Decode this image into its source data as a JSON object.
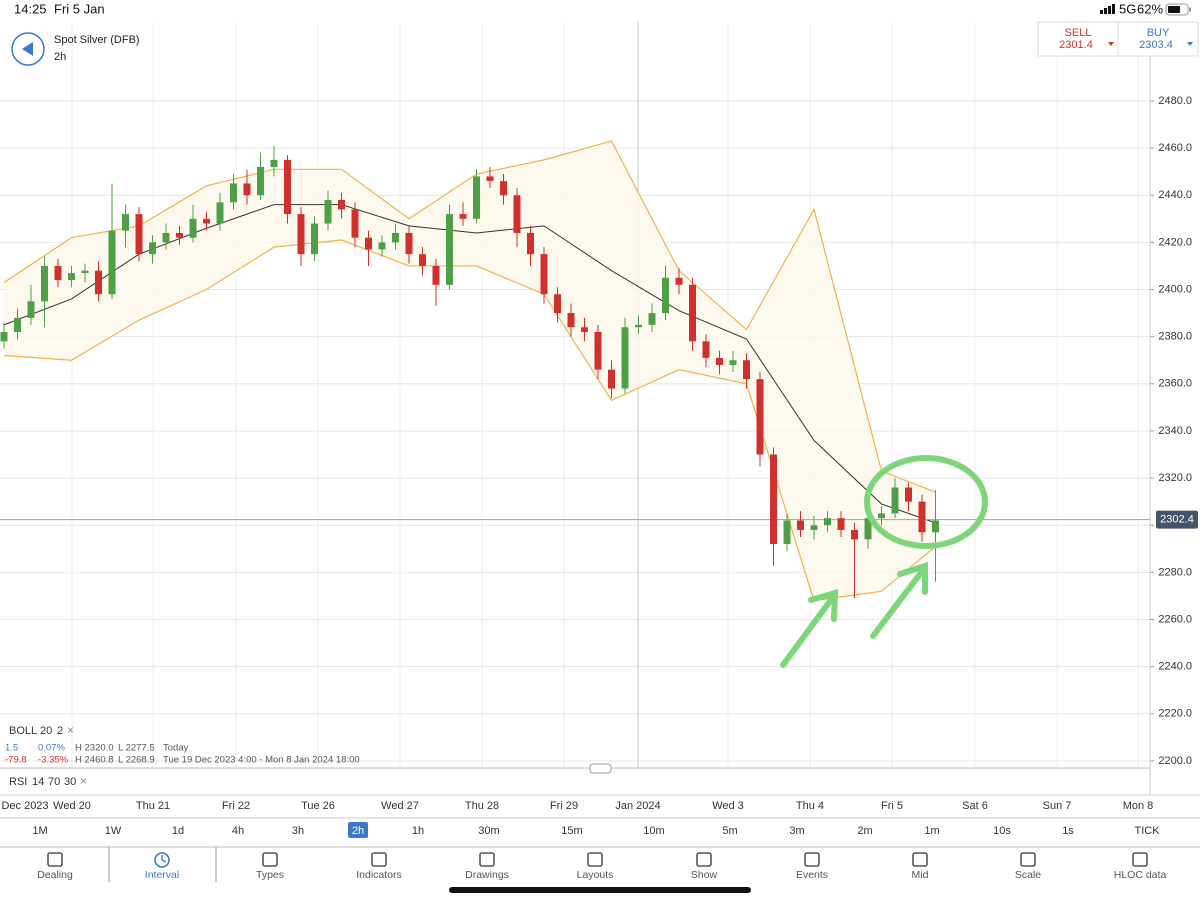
{
  "status_bar": {
    "time": "14:25",
    "date": "Fri 5 Jan",
    "network": "5G",
    "battery": "62%"
  },
  "header": {
    "instrument": "Spot Silver (DFB)",
    "interval": "2h",
    "sell_label": "SELL",
    "sell_price": "2301.4",
    "buy_label": "BUY",
    "buy_price": "2303.4"
  },
  "chart_data": {
    "type": "candlestick",
    "x_labels": [
      "Dec 2023",
      "Wed 20",
      "Thu 21",
      "Fri 22",
      "Tue 26",
      "Wed 27",
      "Thu 28",
      "Fri 29",
      "Jan 2024",
      "Wed 3",
      "Thu 4",
      "Fri 5",
      "Sat 6",
      "Sun 7",
      "Mon 8"
    ],
    "candles": [
      [
        2378,
        2386,
        2375,
        2382
      ],
      [
        2382,
        2392,
        2379,
        2388
      ],
      [
        2388,
        2402,
        2385,
        2395
      ],
      [
        2395,
        2414,
        2384,
        2410
      ],
      [
        2410,
        2413,
        2401,
        2404
      ],
      [
        2404,
        2410,
        2401,
        2407
      ],
      [
        2407,
        2411,
        2403,
        2408
      ],
      [
        2408,
        2412,
        2395,
        2398
      ],
      [
        2398,
        2445,
        2396,
        2425
      ],
      [
        2425,
        2436,
        2418,
        2432
      ],
      [
        2432,
        2435,
        2412,
        2415
      ],
      [
        2415,
        2423,
        2411,
        2420
      ],
      [
        2420,
        2428,
        2417,
        2424
      ],
      [
        2424,
        2427,
        2419,
        2422
      ],
      [
        2422,
        2436,
        2420,
        2430
      ],
      [
        2430,
        2433,
        2425,
        2428
      ],
      [
        2428,
        2441,
        2425,
        2437
      ],
      [
        2437,
        2449,
        2434,
        2445
      ],
      [
        2445,
        2451,
        2436,
        2440
      ],
      [
        2440,
        2458,
        2438,
        2452
      ],
      [
        2452,
        2461,
        2448,
        2455
      ],
      [
        2455,
        2457,
        2428,
        2432
      ],
      [
        2432,
        2435,
        2410,
        2415
      ],
      [
        2415,
        2431,
        2412,
        2428
      ],
      [
        2428,
        2442,
        2425,
        2438
      ],
      [
        2438,
        2441,
        2430,
        2434
      ],
      [
        2434,
        2437,
        2418,
        2422
      ],
      [
        2422,
        2425,
        2410,
        2417
      ],
      [
        2417,
        2423,
        2414,
        2420
      ],
      [
        2420,
        2428,
        2417,
        2424
      ],
      [
        2424,
        2427,
        2411,
        2415
      ],
      [
        2415,
        2418,
        2406,
        2410
      ],
      [
        2410,
        2413,
        2393,
        2402
      ],
      [
        2402,
        2436,
        2400,
        2432
      ],
      [
        2432,
        2437,
        2427,
        2430
      ],
      [
        2430,
        2451,
        2428,
        2448
      ],
      [
        2448,
        2452,
        2443,
        2446
      ],
      [
        2446,
        2449,
        2436,
        2440
      ],
      [
        2440,
        2443,
        2418,
        2424
      ],
      [
        2424,
        2427,
        2410,
        2415
      ],
      [
        2415,
        2418,
        2394,
        2398
      ],
      [
        2398,
        2401,
        2386,
        2390
      ],
      [
        2390,
        2394,
        2380,
        2384
      ],
      [
        2384,
        2388,
        2378,
        2382
      ],
      [
        2382,
        2385,
        2362,
        2366
      ],
      [
        2366,
        2370,
        2354,
        2358
      ],
      [
        2358,
        2388,
        2356,
        2384
      ],
      [
        2384,
        2389,
        2381,
        2385
      ],
      [
        2385,
        2394,
        2382,
        2390
      ],
      [
        2390,
        2410,
        2387,
        2405
      ],
      [
        2405,
        2409,
        2398,
        2402
      ],
      [
        2402,
        2405,
        2374,
        2378
      ],
      [
        2378,
        2381,
        2367,
        2371
      ],
      [
        2371,
        2374,
        2364,
        2368
      ],
      [
        2368,
        2374,
        2365,
        2370
      ],
      [
        2370,
        2373,
        2358,
        2362
      ],
      [
        2362,
        2365,
        2325,
        2330
      ],
      [
        2330,
        2333,
        2283,
        2292
      ],
      [
        2292,
        2305,
        2289,
        2302
      ],
      [
        2302,
        2306,
        2295,
        2298
      ],
      [
        2298,
        2304,
        2294,
        2300
      ],
      [
        2300,
        2306,
        2297,
        2303
      ],
      [
        2303,
        2306,
        2295,
        2298
      ],
      [
        2298,
        2301,
        2269,
        2294
      ],
      [
        2294,
        2307,
        2290,
        2303
      ],
      [
        2303,
        2308,
        2300,
        2305
      ],
      [
        2305,
        2320,
        2303,
        2316
      ],
      [
        2316,
        2318,
        2306,
        2310
      ],
      [
        2310,
        2313,
        2293,
        2297
      ],
      [
        2297,
        2315,
        2276,
        2302
      ]
    ],
    "band_x": [
      0,
      5,
      10,
      15,
      20,
      25,
      30,
      35,
      40,
      45,
      50,
      55,
      60,
      65,
      69
    ],
    "bollinger": {
      "upper": [
        2403,
        2422,
        2427,
        2444,
        2451,
        2451,
        2430,
        2449,
        2455,
        2463,
        2408,
        2383,
        2434,
        2323,
        2314
      ],
      "middle": [
        2385,
        2396,
        2415,
        2426,
        2436,
        2436,
        2427,
        2424,
        2427,
        2408,
        2391,
        2379,
        2336,
        2309,
        2301
      ],
      "lower": [
        2372,
        2370,
        2387,
        2400,
        2418,
        2421,
        2410,
        2410,
        2398,
        2353,
        2366,
        2360,
        2268,
        2272,
        2291
      ]
    },
    "last_price": 2302.4,
    "ylim": [
      2197,
      2513.5
    ],
    "yticks": [
      {
        "value": 2200,
        "label": "2200.0"
      },
      {
        "value": 2220,
        "label": "2220.0"
      },
      {
        "value": 2240,
        "label": "2240.0"
      },
      {
        "value": 2260,
        "label": "2260.0"
      },
      {
        "value": 2280,
        "label": "2280.0"
      },
      {
        "value": 2300,
        "label": "2300.0"
      },
      {
        "value": 2320,
        "label": "2320.0"
      },
      {
        "value": 2340,
        "label": "2340.0"
      },
      {
        "value": 2360,
        "label": "2360.0"
      },
      {
        "value": 2380,
        "label": "2380.0"
      },
      {
        "value": 2400,
        "label": "2400.0"
      },
      {
        "value": 2420,
        "label": "2420.0"
      },
      {
        "value": 2440,
        "label": "2440.0"
      },
      {
        "value": 2460,
        "label": "2460.0"
      },
      {
        "value": 2480,
        "label": "2480.0"
      }
    ],
    "grid": true,
    "up_color": "#4e9f45",
    "down_color": "#d0312d",
    "band_color": "#f0b14a",
    "middle_color": "#333333"
  },
  "indicators": {
    "boll": {
      "name": "BOLL",
      "params": [
        "20",
        "2"
      ],
      "close": "×",
      "rows": [
        [
          "1.5",
          "0.07%",
          "H 2320.0",
          "L 2277.5",
          "Today"
        ],
        [
          "-79.8",
          "-3.35%",
          "H 2460.8",
          "L 2268.9",
          "Tue 19 Dec 2023 4:00 - Mon 8 Jan 2024 18:00"
        ]
      ]
    },
    "rsi": {
      "name": "RSI",
      "params": [
        "14",
        "70",
        "30"
      ],
      "close": "×"
    }
  },
  "intervals": {
    "items": [
      "1M",
      "1W",
      "1d",
      "4h",
      "3h",
      "2h",
      "1h",
      "30m",
      "15m",
      "10m",
      "5m",
      "3m",
      "2m",
      "1m",
      "10s",
      "1s",
      "TICK"
    ],
    "selected": 5
  },
  "toolbar": {
    "items": [
      "Dealing",
      "Interval",
      "Types",
      "Indicators",
      "Drawings",
      "Layouts",
      "Show",
      "Events",
      "Mid",
      "Scale",
      "HLOC data"
    ],
    "active": 1
  }
}
